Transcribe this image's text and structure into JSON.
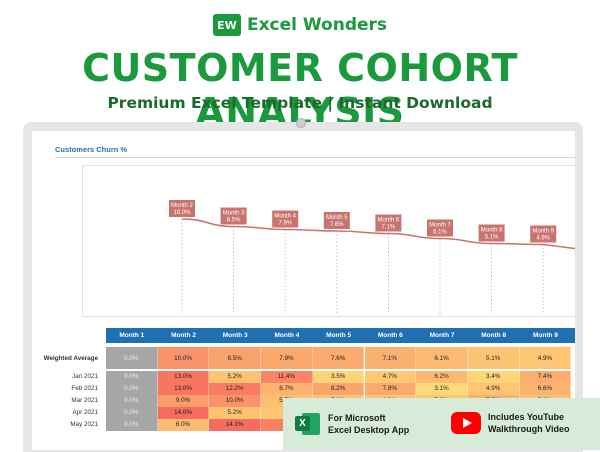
{
  "brand": {
    "logo_text": "EW",
    "name": "Excel Wonders"
  },
  "title": "CUSTOMER COHORT ANALYSIS",
  "subtitle": "Premium Excel Template | Instant Download",
  "chart_data": {
    "type": "line",
    "title": "Customers Churn %",
    "categories": [
      "Month 2",
      "Month 3",
      "Month 4",
      "Month 5",
      "Month 6",
      "Month 7",
      "Month 8",
      "Month 9"
    ],
    "series": [
      {
        "values": [
          10.0,
          8.5,
          7.9,
          7.6,
          7.1,
          6.1,
          5.1,
          4.9
        ]
      }
    ],
    "data_labels": [
      "10.0%",
      "8.5%",
      "7.9%",
      "7.6%",
      "7.1%",
      "6.1%",
      "5.1%",
      "4.9%"
    ],
    "ylim": [
      0,
      12
    ],
    "line_color": "#c9736e",
    "label_bg": "#c9736e",
    "grid": false,
    "drop_lines": true
  },
  "table": {
    "header_color": "#1f6fb3",
    "columns": [
      "Month 1",
      "Month 2",
      "Month 3",
      "Month 4",
      "Month 5",
      "Month 6",
      "Month 7",
      "Month 8",
      "Month 9"
    ],
    "weighted_label": "Weighted Average",
    "weighted": [
      "0.0%",
      "10.0%",
      "8.5%",
      "7.9%",
      "7.6%",
      "7.1%",
      "6.1%",
      "5.1%",
      "4.9%"
    ],
    "rows": [
      {
        "label": "Jan 2021",
        "values": [
          "0.0%",
          "13.0%",
          "5.2%",
          "11.4%",
          "3.5%",
          "4.7%",
          "6.2%",
          "3.4%",
          "7.4%"
        ]
      },
      {
        "label": "Feb 2021",
        "values": [
          "0.0%",
          "13.0%",
          "12.2%",
          "6.7%",
          "8.2%",
          "7.8%",
          "3.1%",
          "4.9%",
          "6.6%"
        ]
      },
      {
        "label": "Mar 2021",
        "values": [
          "0.0%",
          "9.0%",
          "10.0%",
          "5.7%",
          "5.3%",
          "4.9%",
          "5.2%",
          "7.2%",
          "5.8%"
        ]
      },
      {
        "label": "Apr 2021",
        "values": [
          "0.0%",
          "14.0%",
          "5.2%",
          "5",
          "",
          "",
          "",
          "",
          ""
        ]
      },
      {
        "label": "May 2021",
        "values": [
          "0.0%",
          "6.0%",
          "14.1%",
          "12",
          "",
          "",
          "",
          "",
          ""
        ]
      }
    ]
  },
  "badges": {
    "excel_icon_letter": "X",
    "excel_line1": "For Microsoft",
    "excel_line2": "Excel Desktop App",
    "youtube_line1": "Includes YouTube",
    "youtube_line2": "Walkthrough Video"
  }
}
